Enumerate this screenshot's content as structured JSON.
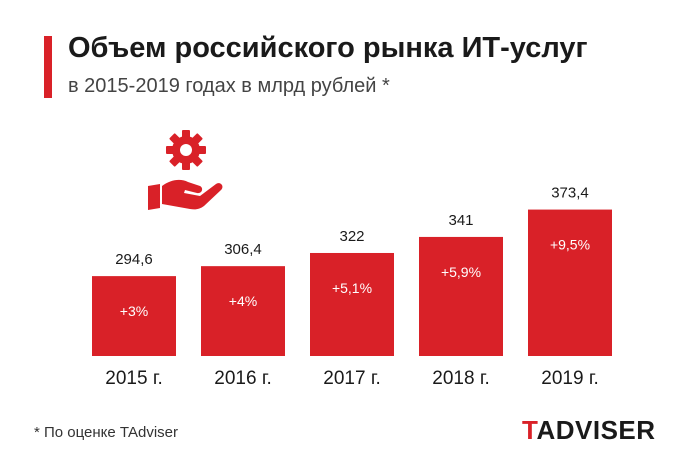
{
  "header": {
    "title": "Объем российского рынка ИТ-услуг",
    "subtitle": "в 2015-2019 годах в млрд рублей *"
  },
  "icon": "gear-in-hand-icon",
  "chart_data": {
    "type": "bar",
    "categories": [
      "2015 г.",
      "2016 г.",
      "2017 г.",
      "2018 г.",
      "2019 г."
    ],
    "values": [
      294.6,
      306.4,
      322,
      341,
      373.4
    ],
    "value_labels": [
      "294,6",
      "306,4",
      "322",
      "341",
      "373,4"
    ],
    "growth_labels": [
      "+3%",
      "+4%",
      "+5,1%",
      "+5,9%",
      "+9,5%"
    ],
    "title": "Объем российского рынка ИТ-услуг",
    "subtitle": "в 2015-2019 годах в млрд рублей *",
    "ylim": [
      200,
      380
    ],
    "grid": false,
    "bar_color": "#d92128"
  },
  "footnote": "* По оценке TAdviser",
  "logo": {
    "first": "T",
    "rest": "ADVISER"
  },
  "colors": {
    "accent": "#d92128",
    "text": "#1a1a1a"
  }
}
